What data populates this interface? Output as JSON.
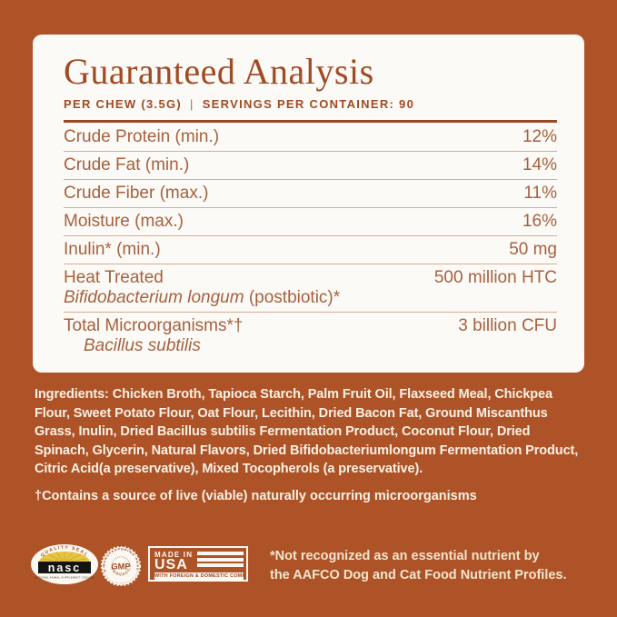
{
  "colors": {
    "background": "#AD5327",
    "card": "#FCFAF6",
    "heading": "#A04B24",
    "thick_rule": "#9A4723",
    "row_text": "#A6613F",
    "row_divider": "#D9AC91",
    "light_text": "#FAF1E4",
    "cream_text": "#F4E5CD",
    "nasc_yellow": "#E7C63E",
    "badge_white": "#FBF8F2"
  },
  "panel": {
    "title": "Guaranteed Analysis",
    "per_chew": "PER CHEW (3.5G)",
    "separator": "|",
    "servings": "SERVINGS PER CONTAINER: 90",
    "rows": [
      {
        "line1": "Crude Protein (min.)",
        "value": "12%"
      },
      {
        "line1": "Crude Fat (min.)",
        "value": "14%"
      },
      {
        "line1": "Crude Fiber (max.)",
        "value": "11%"
      },
      {
        "line1": "Moisture (max.)",
        "value": "16%"
      },
      {
        "line1": "Inulin* (min.)",
        "value": "50 mg"
      },
      {
        "line1": "Heat Treated",
        "line2": [
          {
            "text": "Bifidobacterium longum",
            "italic": true
          },
          {
            "text": " (postbiotic)*",
            "italic": false
          }
        ],
        "value": "500 million HTC"
      },
      {
        "line1": "Total Microorganisms*†",
        "line2": [
          {
            "text": "Bacillus subtilis",
            "italic": true
          }
        ],
        "line2_indent": true,
        "value": "3 billion CFU"
      }
    ]
  },
  "ingredients": {
    "label": "Ingredients:",
    "text": " Chicken Broth, Tapioca Starch, Palm Fruit Oil, Flaxseed Meal, Chickpea Flour, Sweet Potato Flour, Oat Flour, Lecithin, Dried Bacon Fat, Ground Miscanthus Grass, Inulin, Dried Bacillus subtilis Fermentation Product, Coconut Flour, Dried Spinach, Glycerin, Natural Flavors, Dried Bifidobacteriumlongum Fermentation Product, Citric Acid(a preservative), Mixed Tocopherols (a preservative)."
  },
  "dagger_note": "†Contains a source of live (viable) naturally occurring microorganisms",
  "footer": {
    "aafco_note_line1": "*Not recognized as an essential nutrient by",
    "aafco_note_line2": "the AAFCO Dog and Cat Food Nutrient Profiles.",
    "badges": {
      "nasc": {
        "arc_text": "QUALITY SEAL",
        "name": "nasc",
        "subtext": "NATIONAL ANIMAL SUPPLEMENT COUNCIL"
      },
      "gmp": {
        "ring_top": "GOOD MANUFACTURING PRACTICE",
        "ring_bottom": "PRODUCT",
        "center": "GMP"
      },
      "usa": {
        "line1": "MADE IN",
        "line2": "USA",
        "strip": "WITH FOREIGN & DOMESTIC COMPONENTS"
      }
    }
  }
}
